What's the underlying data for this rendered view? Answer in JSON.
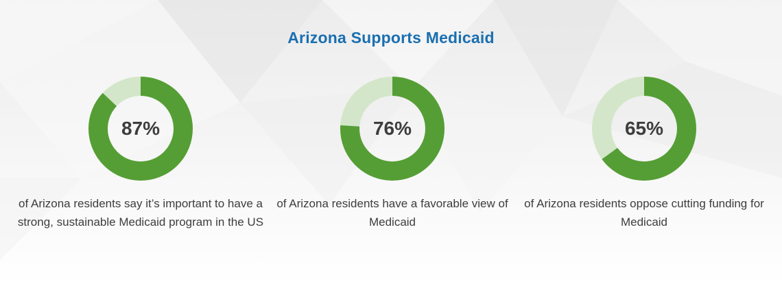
{
  "title": "Arizona Supports Medicaid",
  "colors": {
    "title": "#1a6fb0",
    "ring_fill": "#559e35",
    "ring_track": "#d3e6c9",
    "percent_text": "#3d3d3d",
    "caption_text": "#3d3d3d"
  },
  "chart_data": [
    {
      "type": "pie",
      "value": 87,
      "remainder": 13,
      "label": "87%",
      "caption": "of Arizona residents say it’s important to have a strong, sustainable Medicaid program in the US"
    },
    {
      "type": "pie",
      "value": 76,
      "remainder": 24,
      "label": "76%",
      "caption": "of Arizona residents have a favorable view of Medicaid"
    },
    {
      "type": "pie",
      "value": 65,
      "remainder": 35,
      "label": "65%",
      "caption": "of Arizona residents oppose cutting funding for Medicaid"
    }
  ]
}
